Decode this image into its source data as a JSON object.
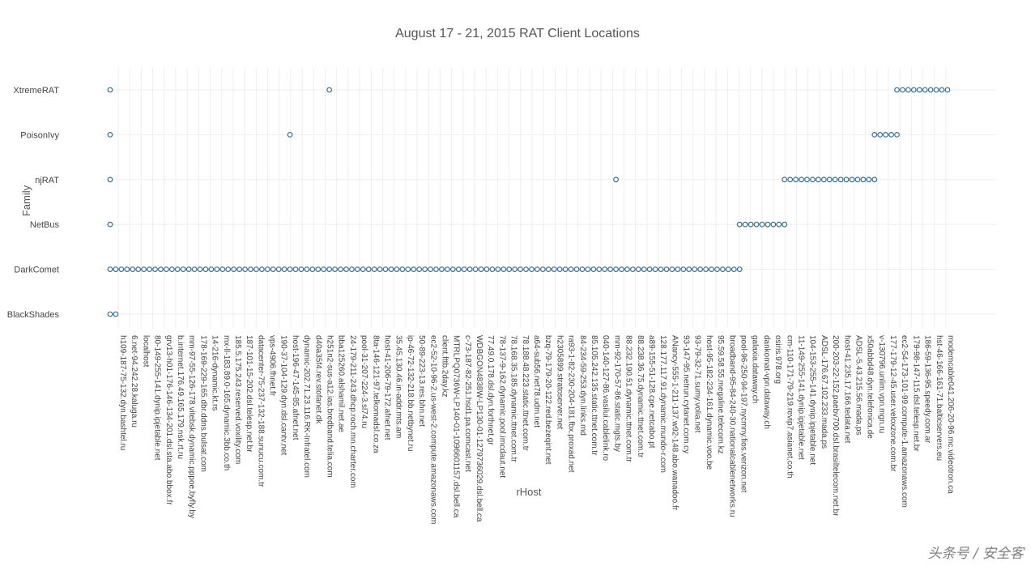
{
  "chart_data": {
    "type": "scatter",
    "title": "August 17 - 21, 2015 RAT Client Locations",
    "xlabel": "rHost",
    "ylabel": "Family",
    "categories": [
      "BlackShades",
      "DarkComet",
      "NetBus",
      "njRAT",
      "PoisonIvy",
      "XtremeRAT"
    ],
    "x_labels": [
      "h109-187-75-132.dyn.bashtel.ru",
      "6.net-94.242.28.kaluga.ru",
      "localhost",
      "80-149-255-141.dynip.ipjetable.net",
      "grv13-h01-176-146-134-201.dsl.sta.abo.bbox.fr",
      "b.internet.176.49.165.179.nsk.rt.ru",
      "mm-97-55-126-178.vitebsk.dynamic.pppoe.byfly.by",
      "178-169-229-165.dbr.ddns.bulsat.com",
      "14-216-dynamic.kt.rs",
      "mx-ll-183.89.0-165.dynamic.3bb.co.th",
      "185.5.175.243.reserved.voxility.com",
      "187-101-15-202.dsl.telesp.net.br",
      "datacenter-75-237-132-188.sunucu.com.tr",
      "vps-4906.fhnet.fr",
      "190-37-104-129.dyn.dsl.cantv.net",
      "host-196-47-145-85.afnet.net",
      "dynamic-202.71.23.116.RK-Infratel.com",
      "d40a35f4.rev.stofanet.dk",
      "h251n2-sus-a12.ias.bredband.telia.com",
      "bba125260.alshamil.net.ae",
      "24-179-211-243.dhcp.roch.mn.charter.com",
      "pool-31-207-224-3.sl74.ru",
      "8ta-146-121-97.telkomadsl.co.za",
      "host-41-206-79-172.afnet.net",
      "35.45.130.46.in-addr.mts.am",
      "ip-46-72-132-218.bb.netbynet.ru",
      "50-89-223-13.res.bhn.net",
      "ec2-52-10-96-2.us-west-2.compute.amazonaws.com",
      "client.fttb.2day.kz",
      "MTRLPQ0736W-LP140-01-1096601157.dsl.bell.ca",
      "c-73-187-82-251.hsd1.pa.comcast.net",
      "WDBGON4838W-LP130-01-1279736029.dsl.bell.ca",
      "77.49.0.178.dsl.dyn.forthnet.gr",
      "78-137-9-162.dynamic.pool.imcdaut.net",
      "78.168.35.185.dynamic.ttnet.com.tr",
      "78.188.48.223.static.ttnet.com.tr",
      "a64-sub56.net78.udm.net",
      "bzq-79-179-20-122.red.bezeqint.net",
      "h2305899.stratoserver.net",
      "ra93-1-82-230-204-181.fbx.proxad.net",
      "84-234-59-253.dyn.links.md",
      "85.105.242.135.static.ttnet.com.tr",
      "040-140-127-86.vasilui.cablelink.ro",
      "mm-92-170-57-86.static.mgts.by",
      "88.232.190.51.dynamic.ttnet.com.tr",
      "88.238.36.75.dynamic.ttnet.com.tr",
      "a89-155-51-128.cpe.netcabo.pt",
      "128.177.117.91.dynamic.mundo-r.com",
      "ANancy-555-1-211-137.w92-148.abo.wanadoo.fr",
      "93-147-95.netrun.cytanet.com.cy",
      "93-79-32-71.sumy.volia.net",
      "host-95-182-234-161.dynamic.voo.be",
      "95.59.58.55.megaline.telecom.kz",
      "broadband-95-84-240-30.nationalcablenetworks.ru",
      "pool-96-250-94-197.nycmny.fios.verizon.net",
      "galaxia.dataway.ch",
      "dankomat-vpn.dataway.ch",
      "osiris.978.org",
      "cm-110-171-79-219.revip7.asianet.co.th",
      "11-149-255-141.dynip.ipjetable.net",
      "104-153-255-141.dynip.ipjetable.net",
      "ADSL-176.67.102.233.mada.ps",
      "200-203-22-152.paebv700.dsl.brasiltelecom.net.br",
      "host-41.235.17.166.tedata.net",
      "ADSL-5.43.215.56.mada.ps",
      "x50abbd48.dyn.telefonica.de",
      "v-130796.unlim.vpn.mgn.ru",
      "177-179-12-45.user.veloxzone.com.br",
      "ec2-54-173-101-99.compute-1.amazonaws.com",
      "179-98-147-115.dsl.telesp.net.br",
      "186-59-136-95.speedy.com.ar",
      "hst-46-166-161-71.balticservers.eu",
      "modemcable041.206-20-96.mc.videotron.ca"
    ],
    "x_range": [
      0,
      149
    ],
    "series": [
      {
        "values": [
          [
            0,
            0
          ],
          [
            1,
            0
          ]
        ]
      },
      {
        "values": [
          [
            0,
            1
          ],
          [
            1,
            1
          ],
          [
            2,
            1
          ],
          [
            3,
            1
          ],
          [
            4,
            1
          ],
          [
            5,
            1
          ],
          [
            6,
            1
          ],
          [
            7,
            1
          ],
          [
            8,
            1
          ],
          [
            9,
            1
          ],
          [
            10,
            1
          ],
          [
            11,
            1
          ],
          [
            12,
            1
          ],
          [
            13,
            1
          ],
          [
            14,
            1
          ],
          [
            15,
            1
          ],
          [
            16,
            1
          ],
          [
            17,
            1
          ],
          [
            18,
            1
          ],
          [
            19,
            1
          ],
          [
            20,
            1
          ],
          [
            21,
            1
          ],
          [
            22,
            1
          ],
          [
            23,
            1
          ],
          [
            24,
            1
          ],
          [
            25,
            1
          ],
          [
            26,
            1
          ],
          [
            27,
            1
          ],
          [
            28,
            1
          ],
          [
            29,
            1
          ],
          [
            30,
            1
          ],
          [
            31,
            1
          ],
          [
            32,
            1
          ],
          [
            33,
            1
          ],
          [
            34,
            1
          ],
          [
            35,
            1
          ],
          [
            36,
            1
          ],
          [
            37,
            1
          ],
          [
            38,
            1
          ],
          [
            39,
            1
          ],
          [
            40,
            1
          ],
          [
            41,
            1
          ],
          [
            42,
            1
          ],
          [
            43,
            1
          ],
          [
            44,
            1
          ],
          [
            45,
            1
          ],
          [
            46,
            1
          ],
          [
            47,
            1
          ],
          [
            48,
            1
          ],
          [
            49,
            1
          ],
          [
            50,
            1
          ],
          [
            51,
            1
          ],
          [
            52,
            1
          ],
          [
            53,
            1
          ],
          [
            54,
            1
          ],
          [
            55,
            1
          ],
          [
            56,
            1
          ],
          [
            57,
            1
          ],
          [
            58,
            1
          ],
          [
            59,
            1
          ],
          [
            60,
            1
          ],
          [
            61,
            1
          ],
          [
            62,
            1
          ],
          [
            63,
            1
          ],
          [
            64,
            1
          ],
          [
            65,
            1
          ],
          [
            66,
            1
          ],
          [
            67,
            1
          ],
          [
            68,
            1
          ],
          [
            69,
            1
          ],
          [
            70,
            1
          ],
          [
            71,
            1
          ],
          [
            72,
            1
          ],
          [
            73,
            1
          ],
          [
            74,
            1
          ],
          [
            75,
            1
          ],
          [
            76,
            1
          ],
          [
            77,
            1
          ],
          [
            78,
            1
          ],
          [
            79,
            1
          ],
          [
            80,
            1
          ],
          [
            81,
            1
          ],
          [
            82,
            1
          ],
          [
            83,
            1
          ],
          [
            84,
            1
          ],
          [
            85,
            1
          ],
          [
            86,
            1
          ],
          [
            87,
            1
          ],
          [
            88,
            1
          ],
          [
            89,
            1
          ],
          [
            90,
            1
          ],
          [
            91,
            1
          ],
          [
            92,
            1
          ],
          [
            93,
            1
          ],
          [
            94,
            1
          ],
          [
            95,
            1
          ],
          [
            96,
            1
          ],
          [
            97,
            1
          ],
          [
            98,
            1
          ],
          [
            99,
            1
          ],
          [
            100,
            1
          ],
          [
            101,
            1
          ],
          [
            102,
            1
          ],
          [
            103,
            1
          ],
          [
            104,
            1
          ],
          [
            105,
            1
          ],
          [
            106,
            1
          ],
          [
            107,
            1
          ],
          [
            108,
            1
          ],
          [
            109,
            1
          ],
          [
            110,
            1
          ],
          [
            111,
            1
          ],
          [
            112,
            1
          ]
        ]
      },
      {
        "values": [
          [
            0,
            2
          ],
          [
            112,
            2
          ],
          [
            113,
            2
          ],
          [
            114,
            2
          ],
          [
            115,
            2
          ],
          [
            116,
            2
          ],
          [
            117,
            2
          ],
          [
            118,
            2
          ],
          [
            119,
            2
          ],
          [
            120,
            2
          ]
        ]
      },
      {
        "values": [
          [
            0,
            3
          ],
          [
            90,
            3
          ],
          [
            120,
            3
          ],
          [
            121,
            3
          ],
          [
            122,
            3
          ],
          [
            123,
            3
          ],
          [
            124,
            3
          ],
          [
            125,
            3
          ],
          [
            126,
            3
          ],
          [
            127,
            3
          ],
          [
            128,
            3
          ],
          [
            129,
            3
          ],
          [
            130,
            3
          ],
          [
            131,
            3
          ],
          [
            132,
            3
          ],
          [
            133,
            3
          ],
          [
            134,
            3
          ],
          [
            135,
            3
          ],
          [
            136,
            3
          ]
        ]
      },
      {
        "values": [
          [
            0,
            4
          ],
          [
            32,
            4
          ],
          [
            136,
            4
          ],
          [
            137,
            4
          ],
          [
            138,
            4
          ],
          [
            139,
            4
          ],
          [
            140,
            4
          ]
        ]
      },
      {
        "values": [
          [
            0,
            5
          ],
          [
            39,
            5
          ],
          [
            140,
            5
          ],
          [
            141,
            5
          ],
          [
            142,
            5
          ],
          [
            143,
            5
          ],
          [
            144,
            5
          ],
          [
            145,
            5
          ],
          [
            146,
            5
          ],
          [
            147,
            5
          ],
          [
            148,
            5
          ],
          [
            149,
            5
          ]
        ]
      }
    ],
    "grid": true
  },
  "watermark": "头条号 / 安全客"
}
